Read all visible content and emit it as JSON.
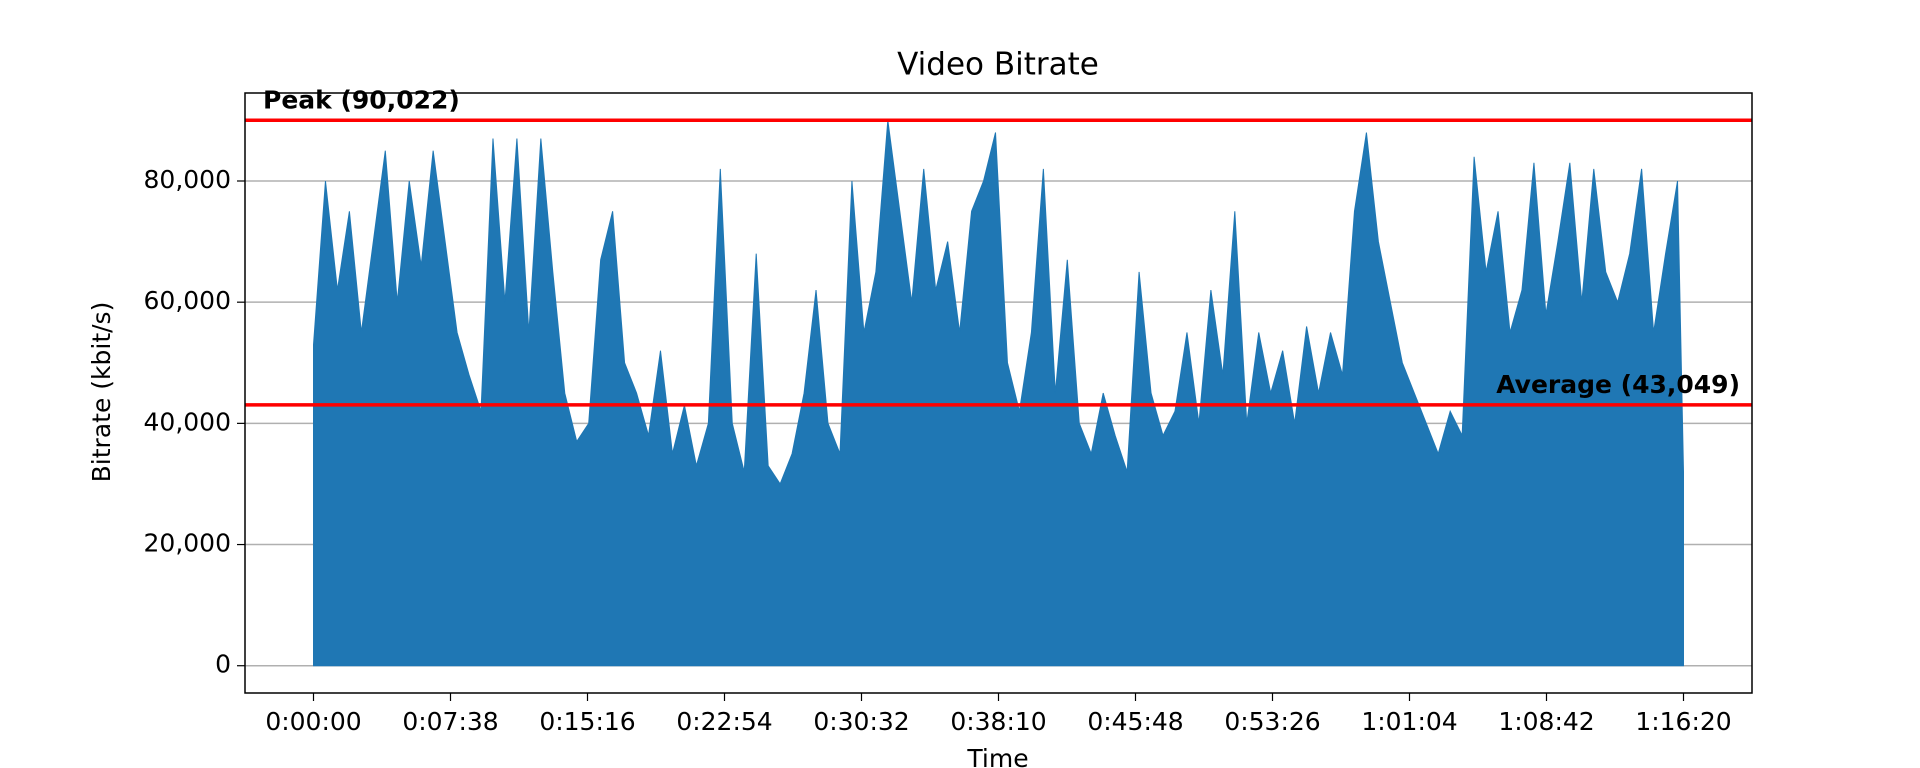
{
  "chart_data": {
    "type": "area",
    "title": "Video Bitrate",
    "x_label": "Time",
    "y_label": "Bitrate (kbit/s)",
    "color": "#1f77b4",
    "grid": true,
    "grid_color": "#b0b0b0",
    "xlim": [
      -229,
      4809
    ],
    "ylim": [
      -4501,
      94523
    ],
    "xticks": [
      {
        "value": 0,
        "label": "0:00:00"
      },
      {
        "value": 458,
        "label": "0:07:38"
      },
      {
        "value": 916,
        "label": "0:15:16"
      },
      {
        "value": 1374,
        "label": "0:22:54"
      },
      {
        "value": 1832,
        "label": "0:30:32"
      },
      {
        "value": 2290,
        "label": "0:38:10"
      },
      {
        "value": 2748,
        "label": "0:45:48"
      },
      {
        "value": 3206,
        "label": "0:53:26"
      },
      {
        "value": 3664,
        "label": "1:01:04"
      },
      {
        "value": 4122,
        "label": "1:08:42"
      },
      {
        "value": 4580,
        "label": "1:16:20"
      }
    ],
    "yticks": [
      0,
      {
        "value": 20000,
        "label": "20,000"
      },
      {
        "value": 40000,
        "label": "40,000"
      },
      {
        "value": 60000,
        "label": "60,000"
      },
      {
        "value": 80000,
        "label": "80,000"
      }
    ],
    "hlines": [
      {
        "label": "Peak (90,022)",
        "value": 90022,
        "color": "#ff0000"
      },
      {
        "label": "Average (43,049)",
        "value": 43049,
        "color": "#ff0000"
      }
    ],
    "x": [
      0,
      40,
      80,
      120,
      160,
      200,
      240,
      280,
      320,
      360,
      400,
      440,
      480,
      520,
      560,
      600,
      640,
      680,
      720,
      760,
      800,
      840,
      880,
      920,
      960,
      1000,
      1040,
      1080,
      1120,
      1160,
      1200,
      1240,
      1280,
      1320,
      1360,
      1400,
      1440,
      1480,
      1520,
      1560,
      1600,
      1640,
      1680,
      1720,
      1760,
      1800,
      1840,
      1880,
      1920,
      1960,
      2000,
      2040,
      2080,
      2120,
      2160,
      2200,
      2240,
      2280,
      2320,
      2360,
      2400,
      2440,
      2480,
      2520,
      2560,
      2600,
      2640,
      2680,
      2720,
      2760,
      2800,
      2840,
      2880,
      2920,
      2960,
      3000,
      3040,
      3080,
      3120,
      3160,
      3200,
      3240,
      3280,
      3320,
      3360,
      3400,
      3440,
      3480,
      3520,
      3560,
      3600,
      3640,
      3680,
      3720,
      3760,
      3800,
      3840,
      3880,
      3920,
      3960,
      4000,
      4040,
      4080,
      4120,
      4160,
      4200,
      4240,
      4280,
      4320,
      4360,
      4400,
      4440,
      4480,
      4520,
      4560,
      4580
    ],
    "values": [
      53000,
      80000,
      62000,
      75000,
      55000,
      70000,
      85000,
      60000,
      80000,
      66000,
      85000,
      70000,
      55000,
      48000,
      42000,
      87000,
      60000,
      87000,
      55000,
      87000,
      65000,
      45000,
      37000,
      40000,
      67000,
      75000,
      50000,
      45000,
      38000,
      52000,
      35000,
      43000,
      33000,
      40000,
      82000,
      40000,
      32000,
      68000,
      33000,
      30000,
      35000,
      45000,
      62000,
      40000,
      35000,
      80000,
      55000,
      65000,
      90022,
      75000,
      60000,
      82000,
      62000,
      70000,
      55000,
      75000,
      80000,
      88000,
      50000,
      42000,
      55000,
      82000,
      45000,
      67000,
      40000,
      35000,
      45000,
      38000,
      32000,
      65000,
      45000,
      38000,
      42000,
      55000,
      40000,
      62000,
      48000,
      75000,
      40000,
      55000,
      45000,
      52000,
      40000,
      56000,
      45000,
      55000,
      48000,
      75000,
      88000,
      70000,
      60000,
      50000,
      45000,
      40000,
      35000,
      42000,
      38000,
      84000,
      65000,
      75000,
      55000,
      62000,
      83000,
      58000,
      70000,
      83000,
      60000,
      82000,
      65000,
      60000,
      68000,
      82000,
      55000,
      68000,
      80000,
      32000
    ]
  }
}
